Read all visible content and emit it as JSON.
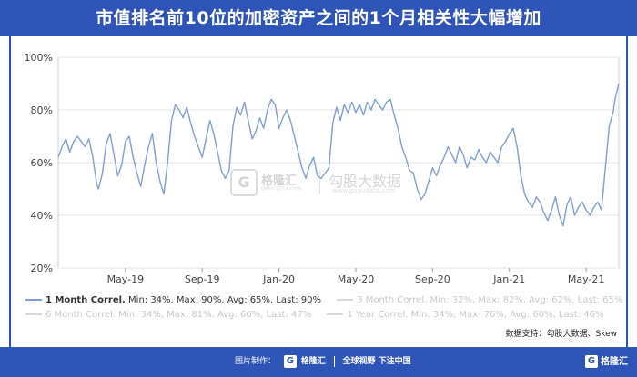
{
  "title": "市值排名前10位的加密资产之间的1个月相关性大幅增加",
  "source": "数据支持：勾股大数据、Skew",
  "footer": {
    "credit_label": "图片制作：",
    "brand": "格隆汇",
    "slogan": "全球视野 下注中国",
    "corner_brand": "格隆汇"
  },
  "watermark": {
    "brand": "格隆汇",
    "brand_sub": "gelonghui.com",
    "partner": "勾股大数据",
    "partner_sub": "www.gogudata.com"
  },
  "legend": [
    {
      "name": "1 Month Correl.",
      "stats": "Min: 34%, Max: 90%, Avg: 65%, Last: 90%",
      "active": true
    },
    {
      "name": "3 Month Correl.",
      "stats": "Min: 32%, Max: 82%, Avg: 62%, Last: 65%",
      "active": false
    },
    {
      "name": "6 Month Correl.",
      "stats": "Min: 34%, Max: 81%, Avg: 60%, Last: 47%",
      "active": false
    },
    {
      "name": "1 Year Correl.",
      "stats": "Min: 34%, Max: 76%, Avg: 60%, Last: 46%",
      "active": false
    }
  ],
  "colors": {
    "header": "#2f54b7",
    "line": "#7f9ed8",
    "dim": "#c8c8c8",
    "grid": "#e6e6e6",
    "axis_text": "#444444"
  },
  "chart_data": {
    "type": "line",
    "y_ticks": [
      "100%",
      "80%",
      "60%",
      "40%",
      "20%"
    ],
    "ylim": [
      20,
      100
    ],
    "x_ticks": [
      {
        "label": "May-19",
        "t": 4
      },
      {
        "label": "Sep-19",
        "t": 8
      },
      {
        "label": "Jan-20",
        "t": 12
      },
      {
        "label": "May-20",
        "t": 16
      },
      {
        "label": "Sep-20",
        "t": 20
      },
      {
        "label": "Jan-21",
        "t": 24
      },
      {
        "label": "May-21",
        "t": 28
      }
    ],
    "x_range": [
      0.5,
      29.7
    ],
    "series": [
      {
        "name": "1 Month Correl.",
        "points": [
          [
            0.5,
            62
          ],
          [
            0.7,
            66
          ],
          [
            0.9,
            69
          ],
          [
            1.1,
            64
          ],
          [
            1.3,
            68
          ],
          [
            1.5,
            70
          ],
          [
            1.7,
            68
          ],
          [
            1.9,
            66
          ],
          [
            2.1,
            69
          ],
          [
            2.3,
            62
          ],
          [
            2.5,
            52
          ],
          [
            2.6,
            50
          ],
          [
            2.8,
            56
          ],
          [
            3.0,
            67
          ],
          [
            3.2,
            71
          ],
          [
            3.4,
            63
          ],
          [
            3.6,
            55
          ],
          [
            3.8,
            59
          ],
          [
            4.0,
            68
          ],
          [
            4.2,
            70
          ],
          [
            4.4,
            62
          ],
          [
            4.6,
            56
          ],
          [
            4.8,
            51
          ],
          [
            5.0,
            59
          ],
          [
            5.2,
            66
          ],
          [
            5.4,
            71
          ],
          [
            5.6,
            60
          ],
          [
            5.8,
            53
          ],
          [
            6.0,
            48
          ],
          [
            6.2,
            60
          ],
          [
            6.4,
            76
          ],
          [
            6.6,
            82
          ],
          [
            6.8,
            80
          ],
          [
            7.0,
            77
          ],
          [
            7.2,
            81
          ],
          [
            7.4,
            75
          ],
          [
            7.6,
            70
          ],
          [
            7.8,
            66
          ],
          [
            8.0,
            62
          ],
          [
            8.2,
            69
          ],
          [
            8.4,
            76
          ],
          [
            8.6,
            71
          ],
          [
            8.8,
            64
          ],
          [
            9.0,
            57
          ],
          [
            9.2,
            54
          ],
          [
            9.4,
            57
          ],
          [
            9.6,
            74
          ],
          [
            9.8,
            81
          ],
          [
            10.0,
            78
          ],
          [
            10.2,
            83
          ],
          [
            10.4,
            76
          ],
          [
            10.6,
            69
          ],
          [
            10.8,
            72
          ],
          [
            11.0,
            77
          ],
          [
            11.2,
            73
          ],
          [
            11.4,
            80
          ],
          [
            11.6,
            84
          ],
          [
            11.8,
            82
          ],
          [
            12.0,
            73
          ],
          [
            12.2,
            77
          ],
          [
            12.4,
            80
          ],
          [
            12.6,
            76
          ],
          [
            12.8,
            70
          ],
          [
            13.0,
            64
          ],
          [
            13.2,
            58
          ],
          [
            13.4,
            54
          ],
          [
            13.6,
            59
          ],
          [
            13.8,
            62
          ],
          [
            14.0,
            55
          ],
          [
            14.2,
            54
          ],
          [
            14.4,
            56
          ],
          [
            14.6,
            58
          ],
          [
            14.8,
            75
          ],
          [
            15.0,
            81
          ],
          [
            15.2,
            76
          ],
          [
            15.4,
            82
          ],
          [
            15.6,
            79
          ],
          [
            15.8,
            83
          ],
          [
            16.0,
            79
          ],
          [
            16.2,
            82
          ],
          [
            16.4,
            78
          ],
          [
            16.6,
            83
          ],
          [
            16.8,
            80
          ],
          [
            17.0,
            84
          ],
          [
            17.2,
            82
          ],
          [
            17.4,
            80
          ],
          [
            17.6,
            83
          ],
          [
            17.8,
            84
          ],
          [
            18.0,
            78
          ],
          [
            18.2,
            73
          ],
          [
            18.4,
            66
          ],
          [
            18.6,
            62
          ],
          [
            18.8,
            57
          ],
          [
            19.0,
            56
          ],
          [
            19.2,
            50
          ],
          [
            19.4,
            46
          ],
          [
            19.6,
            48
          ],
          [
            19.8,
            53
          ],
          [
            20.0,
            58
          ],
          [
            20.2,
            55
          ],
          [
            20.4,
            59
          ],
          [
            20.6,
            62
          ],
          [
            20.8,
            66
          ],
          [
            21.0,
            63
          ],
          [
            21.2,
            60
          ],
          [
            21.4,
            66
          ],
          [
            21.6,
            63
          ],
          [
            21.8,
            58
          ],
          [
            22.0,
            62
          ],
          [
            22.2,
            61
          ],
          [
            22.4,
            65
          ],
          [
            22.6,
            62
          ],
          [
            22.8,
            60
          ],
          [
            23.0,
            64
          ],
          [
            23.2,
            62
          ],
          [
            23.4,
            60
          ],
          [
            23.6,
            66
          ],
          [
            23.8,
            68
          ],
          [
            24.0,
            71
          ],
          [
            24.2,
            73
          ],
          [
            24.4,
            66
          ],
          [
            24.6,
            55
          ],
          [
            24.8,
            48
          ],
          [
            25.0,
            45
          ],
          [
            25.2,
            43
          ],
          [
            25.4,
            47
          ],
          [
            25.6,
            45
          ],
          [
            25.8,
            41
          ],
          [
            26.0,
            38
          ],
          [
            26.2,
            42
          ],
          [
            26.4,
            47
          ],
          [
            26.6,
            40
          ],
          [
            26.8,
            36
          ],
          [
            27.0,
            44
          ],
          [
            27.2,
            47
          ],
          [
            27.4,
            40
          ],
          [
            27.6,
            43
          ],
          [
            27.8,
            45
          ],
          [
            28.0,
            42
          ],
          [
            28.2,
            40
          ],
          [
            28.4,
            43
          ],
          [
            28.6,
            45
          ],
          [
            28.8,
            42
          ],
          [
            29.0,
            58
          ],
          [
            29.2,
            74
          ],
          [
            29.4,
            79
          ],
          [
            29.5,
            84
          ],
          [
            29.7,
            90
          ]
        ]
      }
    ]
  }
}
